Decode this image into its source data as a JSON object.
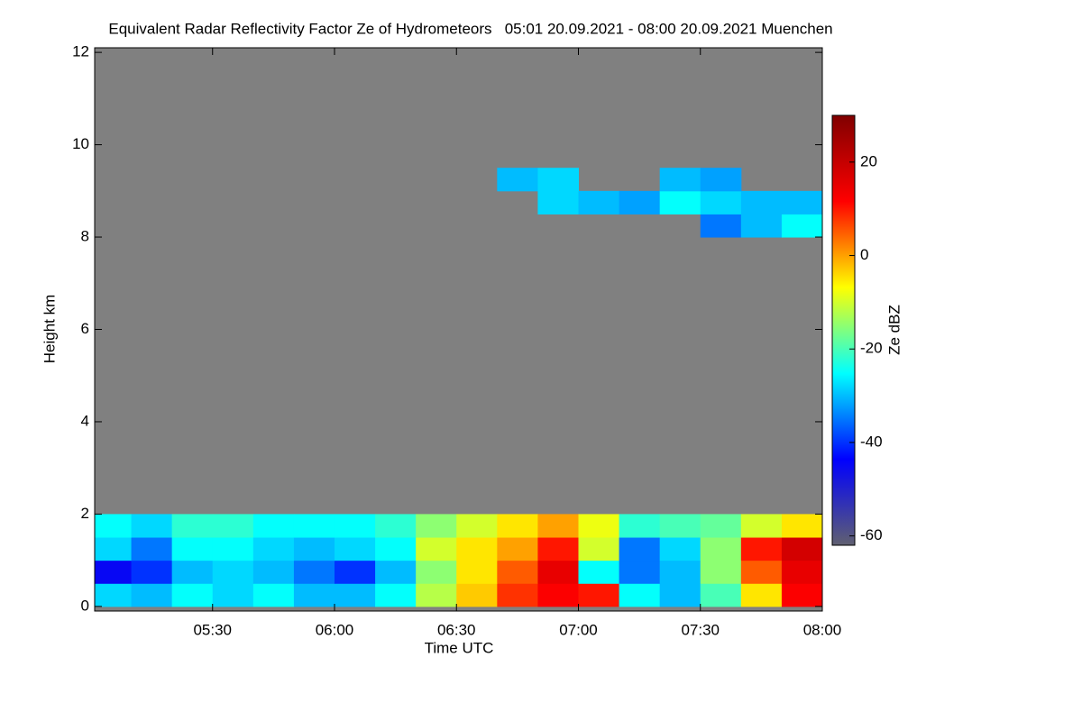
{
  "chart_data": {
    "type": "heatmap",
    "title": "Equivalent Radar Reflectivity Factor Ze of Hydrometeors   05:01 20.09.2021 - 08:00 20.09.2021 Muenchen",
    "x_label": "Time UTC",
    "y_label": "Height km",
    "colorbar_label": "Ze dBZ",
    "background_color": "#808080",
    "colorscale": [
      "#606070",
      "#0000ff",
      "#00ffff",
      "#ffff00",
      "#ff0000",
      "#800000"
    ],
    "xlim": [
      301,
      480
    ],
    "xticks": [
      {
        "value": 330,
        "label": "05:30"
      },
      {
        "value": 360,
        "label": "06:00"
      },
      {
        "value": 390,
        "label": "06:30"
      },
      {
        "value": 420,
        "label": "07:00"
      },
      {
        "value": 450,
        "label": "07:30"
      },
      {
        "value": 480,
        "label": "08:00"
      }
    ],
    "ylim": [
      -0.1,
      12.1
    ],
    "yticks": [
      0,
      2,
      4,
      6,
      8,
      10,
      12
    ],
    "zlim": [
      -62,
      30
    ],
    "zticks": [
      -60,
      -40,
      -20,
      0,
      20
    ],
    "x_bins": [
      301,
      310,
      320,
      330,
      340,
      350,
      360,
      370,
      380,
      390,
      400,
      410,
      420,
      430,
      440,
      450,
      460,
      470,
      480
    ],
    "y_bins": [
      0,
      0.5,
      1,
      1.5,
      2,
      8,
      8.5,
      9,
      9.5
    ],
    "z": [
      [
        -28,
        -30,
        -25,
        -28,
        -25,
        -30,
        -30,
        -25,
        -12,
        -3,
        8,
        12,
        10,
        -25,
        -30,
        -20,
        -5,
        12
      ],
      [
        -45,
        -40,
        -30,
        -28,
        -30,
        -35,
        -40,
        -30,
        -15,
        -5,
        5,
        15,
        -25,
        -35,
        -30,
        -15,
        5,
        15
      ],
      [
        -28,
        -35,
        -25,
        -25,
        -28,
        -30,
        -28,
        -25,
        -10,
        -5,
        0,
        10,
        -10,
        -35,
        -28,
        -15,
        10,
        18
      ],
      [
        -25,
        -28,
        -22,
        -22,
        -25,
        -25,
        -25,
        -22,
        -15,
        -10,
        -5,
        0,
        -8,
        -22,
        -20,
        -18,
        -10,
        -5
      ],
      [
        null,
        null,
        null,
        null,
        null,
        null,
        null,
        null,
        null,
        null,
        null,
        null,
        null,
        null,
        null,
        null,
        null,
        null
      ],
      [
        null,
        null,
        null,
        null,
        null,
        null,
        null,
        null,
        null,
        null,
        null,
        null,
        null,
        null,
        null,
        -35,
        -30,
        -25
      ],
      [
        null,
        null,
        null,
        null,
        null,
        null,
        null,
        null,
        null,
        null,
        null,
        -28,
        -30,
        -32,
        -25,
        -28,
        -30,
        -30
      ],
      [
        null,
        null,
        null,
        null,
        null,
        null,
        null,
        null,
        null,
        null,
        -30,
        -28,
        null,
        null,
        -30,
        -32,
        null,
        null
      ]
    ]
  }
}
